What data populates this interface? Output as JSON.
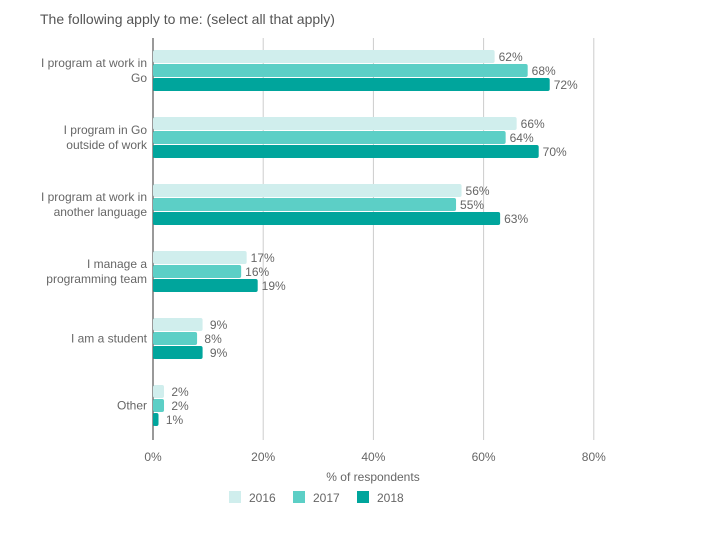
{
  "chart_data": {
    "type": "bar",
    "orientation": "horizontal",
    "title": "The following apply to me: (select all that apply)",
    "xlabel": "% of respondents",
    "ylabel": "",
    "xlim": [
      0,
      80
    ],
    "xticks": [
      "0%",
      "20%",
      "40%",
      "60%",
      "80%"
    ],
    "grid": true,
    "legend_position": "bottom",
    "categories": [
      [
        "I program at work in",
        "Go"
      ],
      [
        "I program in Go",
        "outside of work"
      ],
      [
        "I program at work in",
        "another language"
      ],
      [
        "I manage a",
        "programming team"
      ],
      [
        "I am a student"
      ],
      [
        "Other"
      ]
    ],
    "series": [
      {
        "name": "2016",
        "color": "#d0eeed",
        "values": [
          62,
          66,
          56,
          17,
          9,
          2
        ],
        "labels": [
          "62%",
          "66%",
          "56%",
          "17%",
          "9%",
          "2%"
        ]
      },
      {
        "name": "2017",
        "color": "#5ccfc6",
        "values": [
          68,
          64,
          55,
          16,
          8,
          2
        ],
        "labels": [
          "68%",
          "64%",
          "55%",
          "16%",
          "8%",
          "2%"
        ]
      },
      {
        "name": "2018",
        "color": "#00a59c",
        "values": [
          72,
          70,
          63,
          19,
          9,
          1
        ],
        "labels": [
          "72%",
          "70%",
          "63%",
          "19%",
          "9%",
          "1%"
        ]
      }
    ]
  }
}
